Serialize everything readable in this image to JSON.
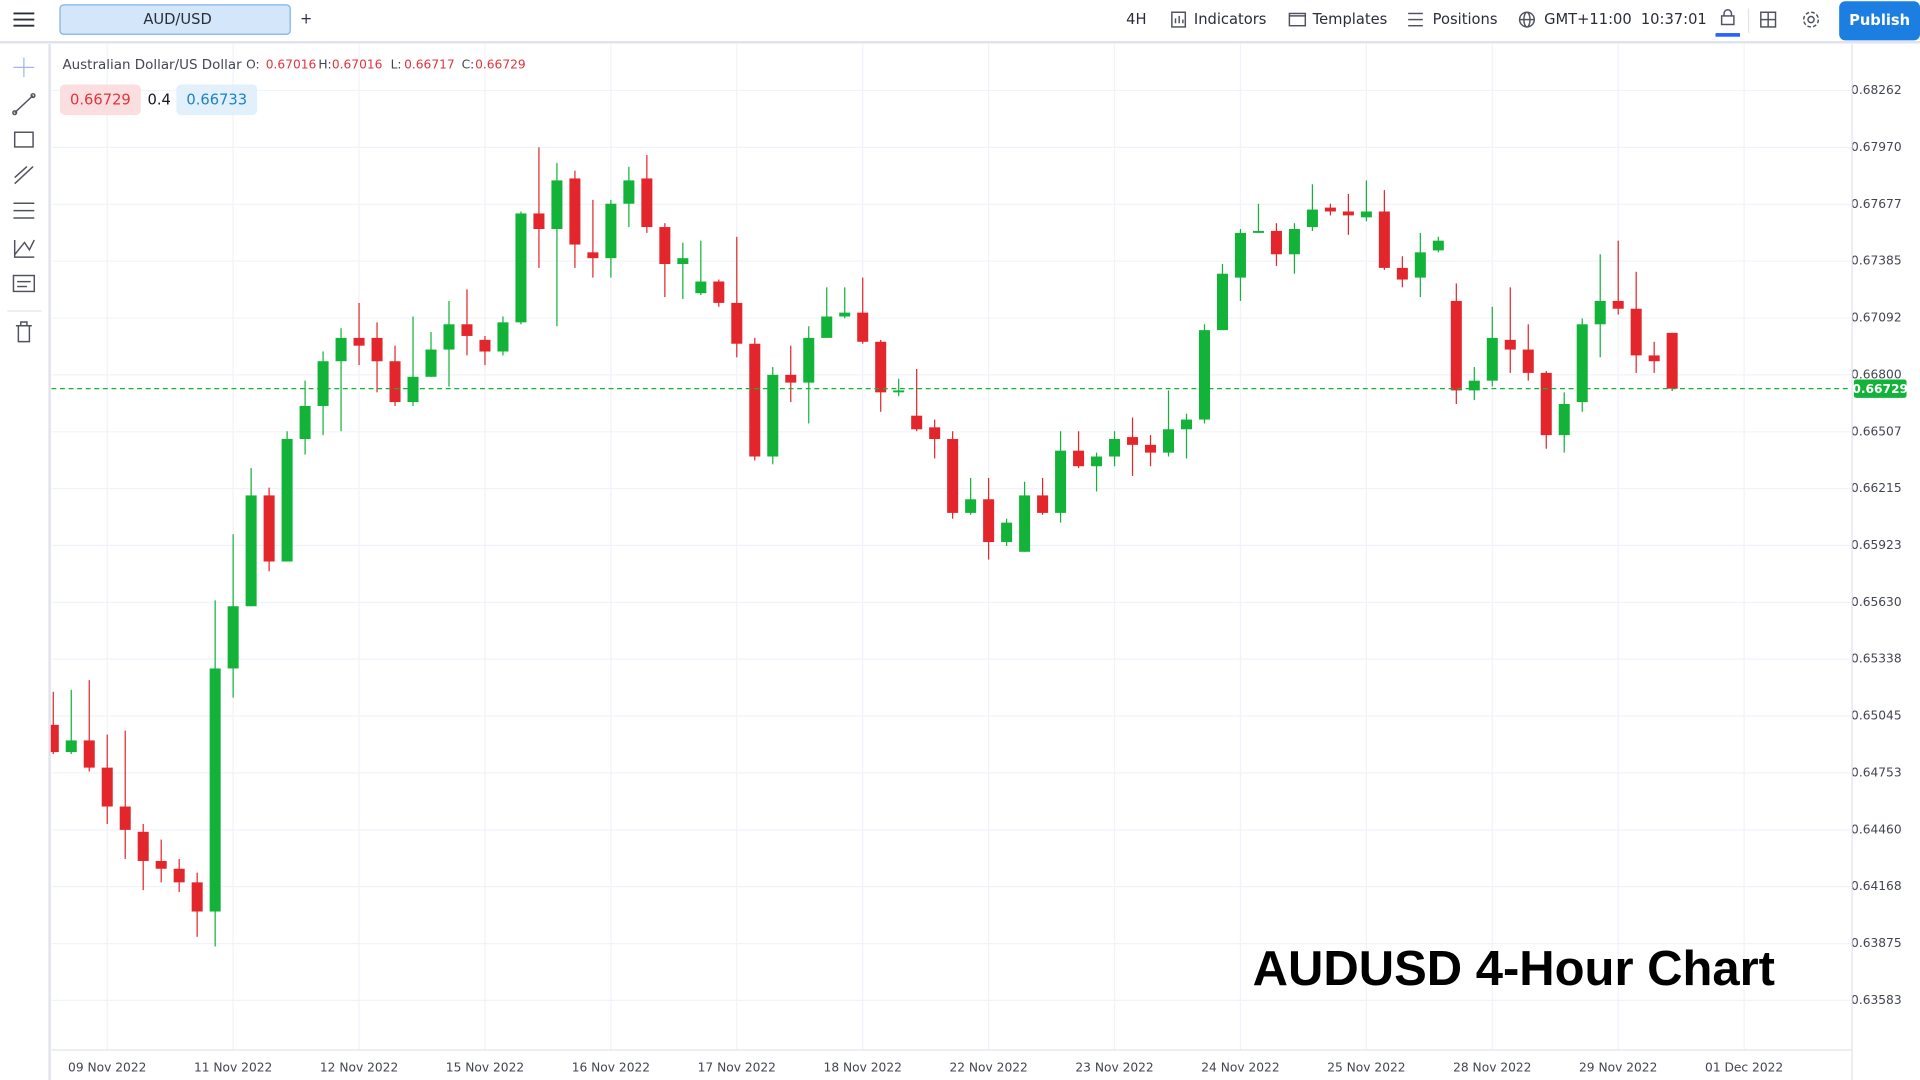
{
  "toolbar": {
    "tab": "AUD/USD",
    "add": "+",
    "interval": "4H",
    "indicators": "Indicators",
    "templates": "Templates",
    "positions": "Positions",
    "timezone": "GMT+11:00",
    "clock": "10:37:01",
    "publish": "Publish"
  },
  "legend": {
    "o_label": "O:",
    "h_label": "H:",
    "l_label": "L:",
    "c_label": "C:"
  },
  "quote": {
    "bid": "0.66729",
    "spread": "0.4",
    "ask": "0.66733"
  },
  "chart_data": {
    "type": "candlestick",
    "title": "AUDUSD 4-Hour Chart",
    "symbol": "Australian Dollar/US Dollar",
    "up_color": "#13b33a",
    "down_color": "#e3262c",
    "grid": true,
    "ylim": [
      0.63331,
      0.68501
    ],
    "yticks": [
      0.68262,
      {
        "value": 0.6797,
        "label": "0.67970"
      },
      0.67677,
      0.67385,
      0.67092,
      {
        "value": 0.668,
        "label": "0.66800"
      },
      0.66507,
      0.66215,
      0.65923,
      {
        "value": 0.6563,
        "label": "0.65630"
      },
      0.65338,
      0.65045,
      0.64753,
      {
        "value": 0.6446,
        "label": "0.64460"
      },
      0.64168,
      0.63875,
      0.63583
    ],
    "categories": [
      null,
      null,
      null,
      "09 Nov 2022",
      null,
      null,
      null,
      null,
      null,
      null,
      "11 Nov 2022",
      null,
      null,
      null,
      null,
      null,
      null,
      "12 Nov 2022",
      null,
      null,
      null,
      null,
      null,
      null,
      "15 Nov 2022",
      null,
      null,
      null,
      null,
      null,
      null,
      "16 Nov 2022",
      null,
      null,
      null,
      null,
      null,
      null,
      "17 Nov 2022",
      null,
      null,
      null,
      null,
      null,
      null,
      "18 Nov 2022",
      null,
      null,
      null,
      null,
      null,
      null,
      "22 Nov 2022",
      null,
      null,
      null,
      null,
      null,
      null,
      "23 Nov 2022",
      null,
      null,
      null,
      null,
      null,
      null,
      "24 Nov 2022",
      null,
      null,
      null,
      null,
      null,
      null,
      "25 Nov 2022",
      null,
      null,
      null,
      null,
      null,
      null,
      "28 Nov 2022",
      null,
      null,
      null,
      null,
      null,
      null,
      "29 Nov 2022",
      null,
      null,
      null,
      null,
      null,
      null,
      "01 Dec 2022"
    ],
    "open": [
      0.65,
      0.6486,
      0.6492,
      0.6478,
      0.6458,
      0.6445,
      0.643,
      0.6426,
      0.6419,
      0.6404,
      0.6529,
      0.6561,
      0.6618,
      0.6584,
      0.6647,
      0.6664,
      0.6687,
      0.6699,
      0.6699,
      0.6687,
      0.6666,
      0.6679,
      0.6693,
      0.6706,
      0.6698,
      0.6692,
      0.6707,
      0.6763,
      0.6755,
      0.6781,
      0.6743,
      0.674,
      0.6768,
      0.6781,
      0.6756,
      0.6737,
      0.6722,
      0.6728,
      0.6717,
      0.6696,
      0.6638,
      0.668,
      0.6676,
      0.6699,
      0.671,
      0.6712,
      0.6697,
      0.6671,
      0.6659,
      0.6653,
      0.6647,
      0.6609,
      0.6616,
      0.6594,
      0.6589,
      0.6618,
      0.6609,
      0.6641,
      0.6633,
      0.6638,
      0.6648,
      0.6644,
      0.664,
      0.6652,
      0.6657,
      0.6703,
      0.673,
      0.6753,
      0.6754,
      0.6742,
      0.6756,
      0.6766,
      0.6764,
      0.6761,
      0.6764,
      0.6735,
      0.673,
      0.6744,
      0.6718,
      0.6672,
      0.6677,
      0.6698,
      0.6693,
      0.6681,
      0.6649,
      0.6666,
      0.6706,
      0.6718,
      0.6714,
      0.669,
      0.67016,
      null,
      null,
      null,
      null
    ],
    "high": [
      0.6517,
      0.6518,
      0.6523,
      0.6495,
      0.6497,
      0.6449,
      0.6441,
      0.6431,
      0.6424,
      0.6564,
      0.6598,
      0.6632,
      0.6622,
      0.6651,
      0.6677,
      0.6692,
      0.6704,
      0.6717,
      0.6707,
      0.6695,
      0.671,
      0.6702,
      0.6718,
      0.6724,
      0.67,
      0.671,
      0.6764,
      0.6797,
      0.6789,
      0.6785,
      0.677,
      0.677,
      0.6787,
      0.6793,
      0.6758,
      0.6748,
      0.6749,
      0.6729,
      0.6751,
      0.6699,
      0.6684,
      0.6695,
      0.6705,
      0.6725,
      0.6725,
      0.673,
      0.6698,
      0.6678,
      0.6683,
      0.6657,
      0.6651,
      0.6627,
      0.6627,
      0.6606,
      0.6625,
      0.6627,
      0.6651,
      0.6651,
      0.664,
      0.6651,
      0.6658,
      0.6649,
      0.6672,
      0.666,
      0.6706,
      0.6737,
      0.6755,
      0.6768,
      0.6758,
      0.6758,
      0.6778,
      0.6768,
      0.6773,
      0.678,
      0.6775,
      0.6741,
      0.6753,
      0.6751,
      0.6727,
      0.6684,
      0.6715,
      0.6725,
      0.6706,
      0.6682,
      0.6671,
      0.6709,
      0.6742,
      0.6749,
      0.6733,
      0.6697,
      0.67016,
      null,
      null,
      null,
      null
    ],
    "low": [
      0.6485,
      0.6485,
      0.6476,
      0.6449,
      0.6431,
      0.6415,
      0.6419,
      0.6414,
      0.6391,
      0.6386,
      0.6514,
      0.6561,
      0.6579,
      0.6584,
      0.6639,
      0.6649,
      0.6651,
      0.6685,
      0.6671,
      0.6664,
      0.6664,
      0.6679,
      0.6674,
      0.669,
      0.6685,
      0.669,
      0.6706,
      0.6735,
      0.6705,
      0.6735,
      0.673,
      0.673,
      0.6756,
      0.6753,
      0.672,
      0.6719,
      0.6721,
      0.6715,
      0.6689,
      0.6636,
      0.6634,
      0.6666,
      0.6655,
      0.67,
      0.6709,
      0.6696,
      0.6661,
      0.6669,
      0.6651,
      0.6637,
      0.6606,
      0.6608,
      0.6585,
      0.6592,
      0.6589,
      0.6608,
      0.6604,
      0.6632,
      0.662,
      0.6633,
      0.6628,
      0.6633,
      0.6638,
      0.6637,
      0.6655,
      0.6703,
      0.6718,
      0.6753,
      0.6736,
      0.6732,
      0.6754,
      0.6762,
      0.6752,
      0.6759,
      0.6734,
      0.6725,
      0.672,
      0.6743,
      0.6665,
      0.6667,
      0.6674,
      0.6681,
      0.6677,
      0.6642,
      0.664,
      0.6661,
      0.6689,
      0.6711,
      0.6681,
      0.6681,
      0.66717,
      null,
      null,
      null,
      null
    ],
    "close": [
      0.6486,
      0.6492,
      0.6478,
      0.6458,
      0.6446,
      0.643,
      0.6426,
      0.6419,
      0.6404,
      0.6529,
      0.6561,
      0.6618,
      0.6584,
      0.6647,
      0.6664,
      0.6687,
      0.6699,
      0.6695,
      0.6687,
      0.6666,
      0.6679,
      0.6693,
      0.6706,
      0.67,
      0.6692,
      0.6707,
      0.6763,
      0.6755,
      0.678,
      0.6747,
      0.674,
      0.6768,
      0.678,
      0.6756,
      0.6737,
      0.674,
      0.6728,
      0.6717,
      0.6696,
      0.6638,
      0.668,
      0.6676,
      0.6699,
      0.671,
      0.6712,
      0.6697,
      0.6671,
      0.6672,
      0.6652,
      0.6647,
      0.6609,
      0.6616,
      0.6594,
      0.6604,
      0.6618,
      0.6609,
      0.6641,
      0.6633,
      0.6638,
      0.6647,
      0.6644,
      0.664,
      0.6652,
      0.6657,
      0.6703,
      0.6732,
      0.6753,
      0.6754,
      0.6742,
      0.6755,
      0.6765,
      0.6764,
      0.6762,
      0.6764,
      0.6735,
      0.6729,
      0.6743,
      0.6749,
      0.6672,
      0.6677,
      0.6699,
      0.6693,
      0.6681,
      0.6649,
      0.6665,
      0.6706,
      0.6718,
      0.6714,
      0.669,
      0.6687,
      0.66729,
      null,
      null,
      null,
      null
    ]
  }
}
